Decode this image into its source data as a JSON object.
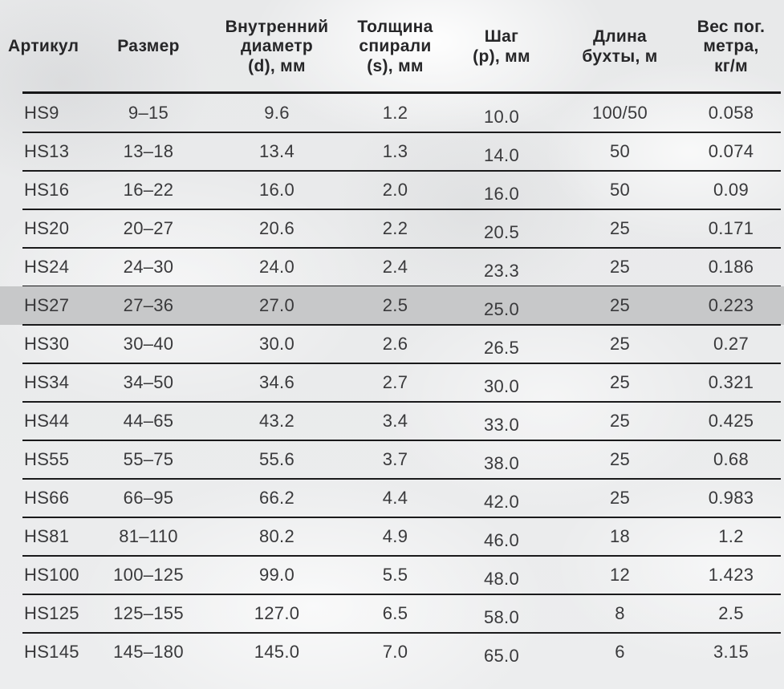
{
  "chart_data": {
    "type": "table",
    "columns": [
      "Артикул",
      "Размер",
      "Внутренний\nдиаметр\n(d), мм",
      "Толщина\nспирали\n(s), мм",
      "Шаг\n(p), мм",
      "Длина\nбухты, м",
      "Вес пог.\nметра,\nкг/м"
    ],
    "rows": [
      {
        "cells": [
          "HS9",
          "9–15",
          "9.6",
          "1.2",
          "10.0",
          "100/50",
          "0.058"
        ],
        "highlighted": false
      },
      {
        "cells": [
          "HS13",
          "13–18",
          "13.4",
          "1.3",
          "14.0",
          "50",
          "0.074"
        ],
        "highlighted": false
      },
      {
        "cells": [
          "HS16",
          "16–22",
          "16.0",
          "2.0",
          "16.0",
          "50",
          "0.09"
        ],
        "highlighted": false
      },
      {
        "cells": [
          "HS20",
          "20–27",
          "20.6",
          "2.2",
          "20.5",
          "25",
          "0.171"
        ],
        "highlighted": false
      },
      {
        "cells": [
          "HS24",
          "24–30",
          "24.0",
          "2.4",
          "23.3",
          "25",
          "0.186"
        ],
        "highlighted": false
      },
      {
        "cells": [
          "HS27",
          "27–36",
          "27.0",
          "2.5",
          "25.0",
          "25",
          "0.223"
        ],
        "highlighted": true
      },
      {
        "cells": [
          "HS30",
          "30–40",
          "30.0",
          "2.6",
          "26.5",
          "25",
          "0.27"
        ],
        "highlighted": false
      },
      {
        "cells": [
          "HS34",
          "34–50",
          "34.6",
          "2.7",
          "30.0",
          "25",
          "0.321"
        ],
        "highlighted": false
      },
      {
        "cells": [
          "HS44",
          "44–65",
          "43.2",
          "3.4",
          "33.0",
          "25",
          "0.425"
        ],
        "highlighted": false
      },
      {
        "cells": [
          "HS55",
          "55–75",
          "55.6",
          "3.7",
          "38.0",
          "25",
          "0.68"
        ],
        "highlighted": false
      },
      {
        "cells": [
          "HS66",
          "66–95",
          "66.2",
          "4.4",
          "42.0",
          "25",
          "0.983"
        ],
        "highlighted": false
      },
      {
        "cells": [
          "HS81",
          "81–110",
          "80.2",
          "4.9",
          "46.0",
          "18",
          "1.2"
        ],
        "highlighted": false
      },
      {
        "cells": [
          "HS100",
          "100–125",
          "99.0",
          "5.5",
          "48.0",
          "12",
          "1.423"
        ],
        "highlighted": false
      },
      {
        "cells": [
          "HS125",
          "125–155",
          "127.0",
          "6.5",
          "58.0",
          "8",
          "2.5"
        ],
        "highlighted": false
      },
      {
        "cells": [
          "HS145",
          "145–180",
          "145.0",
          "7.0",
          "65.0",
          "6",
          "3.15"
        ],
        "highlighted": false
      }
    ],
    "layout": {
      "legend": "none",
      "grid": "horizontal-rules"
    }
  },
  "colors": {
    "highlight_row": "#c7c8c9",
    "rule_line": "#1a1a1b",
    "header_text": "#262628",
    "body_text": "#39393b",
    "background": "#e9eaeb"
  }
}
